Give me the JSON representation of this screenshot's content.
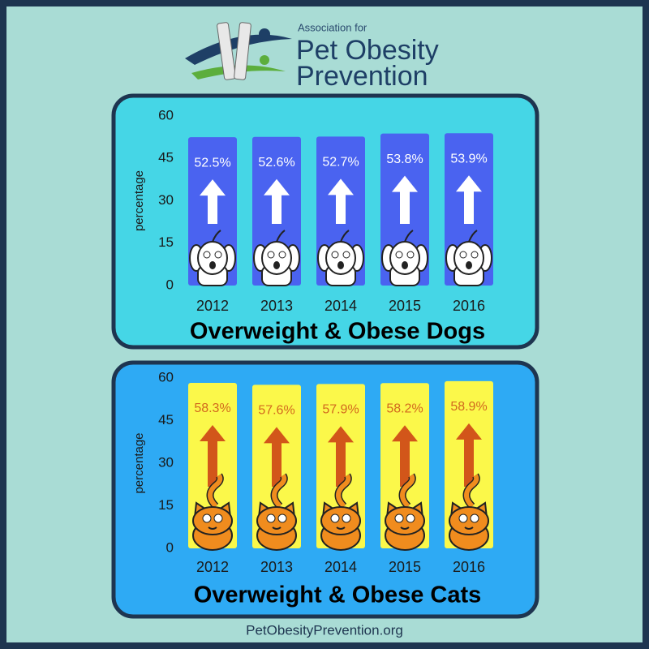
{
  "header": {
    "subtitle": "Association for",
    "title_line1": "Pet Obesity",
    "title_line2": "Prevention"
  },
  "footer": "PetObesityPrevention.org",
  "chart_data": [
    {
      "type": "bar",
      "title": "Overweight & Obese Dogs",
      "y_label": "percentage",
      "categories": [
        "2012",
        "2013",
        "2014",
        "2015",
        "2016"
      ],
      "values": [
        52.5,
        52.6,
        52.7,
        53.8,
        53.9
      ],
      "value_labels": [
        "52.5%",
        "52.6%",
        "52.7%",
        "53.8%",
        "53.9%"
      ],
      "color": "#4a63f0",
      "label_color": "#ffffff",
      "arrow_color": "#ffffff",
      "background": "#45d6e6",
      "ylim": [
        0,
        60
      ],
      "yticks": [
        0,
        15,
        30,
        45,
        60
      ],
      "grid": false
    },
    {
      "type": "bar",
      "title": "Overweight & Obese Cats",
      "y_label": "percentage",
      "categories": [
        "2012",
        "2013",
        "2014",
        "2015",
        "2016"
      ],
      "values": [
        58.3,
        57.6,
        57.9,
        58.2,
        58.9
      ],
      "value_labels": [
        "58.3%",
        "57.6%",
        "57.9%",
        "58.2%",
        "58.9%"
      ],
      "color": "#fbf84a",
      "label_color": "#d2691e",
      "arrow_color": "#d2561a",
      "background": "#2eaaf4",
      "ylim": [
        0,
        60
      ],
      "yticks": [
        0,
        15,
        30,
        45,
        60
      ],
      "grid": false
    }
  ]
}
